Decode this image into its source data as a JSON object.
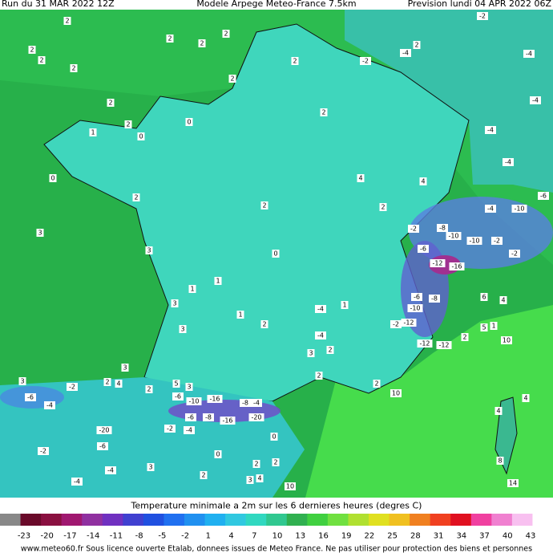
{
  "header": {
    "run": "Run du 31 MAR 2022 12Z",
    "model": "Modele Arpege Meteo-France 7.5km",
    "forecast": "Prevision lundi 04 APR 2022 06Z"
  },
  "legend_title": "Temperature minimale a 2m sur les 6 dernieres heures (degres C)",
  "colorbar": {
    "ticks": [
      -23,
      -20,
      -17,
      -14,
      -11,
      -8,
      -5,
      -2,
      1,
      4,
      7,
      10,
      13,
      16,
      19,
      22,
      25,
      28,
      31,
      34,
      37,
      40,
      43
    ],
    "colors": [
      "#888888",
      "#6a0a2a",
      "#8a1040",
      "#a01870",
      "#9030a0",
      "#7030c0",
      "#4040d0",
      "#2050e0",
      "#2070f0",
      "#2090f0",
      "#20b0f0",
      "#30c8e0",
      "#30d8c0",
      "#30c890",
      "#30b050",
      "#40d040",
      "#70e040",
      "#b0e030",
      "#e0e020",
      "#f0c020",
      "#f08020",
      "#f04020",
      "#e01020",
      "#f040a0",
      "#f080d0",
      "#f8c0f0",
      "#ffffff"
    ]
  },
  "footer": "www.meteo60.fr Sous licence ouverte Etalab, donnees issues de Meteo France. Ne pas utiliser pour protection des biens et personnes",
  "stations": [
    "2",
    "2",
    "2",
    "2",
    "2",
    "2",
    "2",
    "2",
    "-2",
    "-4",
    "-4",
    "-2",
    "2",
    "2",
    "2",
    "2",
    "2",
    "0",
    "1",
    "0",
    "-4",
    "-4",
    "-4",
    "0",
    "4",
    "2",
    "4",
    "2",
    "2",
    "-4",
    "-10",
    "-6",
    "3",
    "-2",
    "-8",
    "-10",
    "-10",
    "-6",
    "-12",
    "-16",
    "-2",
    "-2",
    "3",
    "0",
    "1",
    "1",
    "-6",
    "-8",
    "-10",
    "-4",
    "1",
    "3",
    "1",
    "2",
    "3",
    "-4",
    "-2",
    "-12",
    "2",
    "3",
    "-12",
    "-12",
    "2",
    "5",
    "1",
    "10",
    "4",
    "6",
    "2",
    "3",
    "3",
    "2",
    "4",
    "-2",
    "-6",
    "-4",
    "5",
    "3",
    "2",
    "-6",
    "-10",
    "-16",
    "-8",
    "-4",
    "-6",
    "-8",
    "-16",
    "-20",
    "-2",
    "-4",
    "-20",
    "0",
    "-6",
    "0",
    "-2",
    "-4",
    "3",
    "2",
    "2",
    "2",
    "3",
    "4",
    "-4",
    "10",
    "2",
    "10",
    "4",
    "4",
    "8",
    "14"
  ]
}
